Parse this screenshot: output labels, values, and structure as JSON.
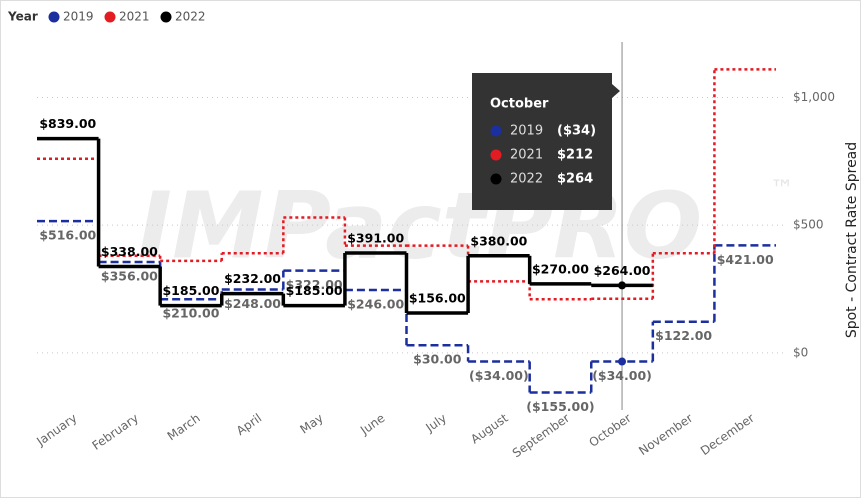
{
  "chart_data": {
    "type": "step-line",
    "legend_title": "Year",
    "watermark": "IMPactPRO",
    "watermark_mark": "™",
    "y_axis_title": "Spot - Contract Rate Spread",
    "categories": [
      "January",
      "February",
      "March",
      "April",
      "May",
      "June",
      "July",
      "August",
      "September",
      "October",
      "November",
      "December"
    ],
    "series": [
      {
        "name": "2019",
        "color": "#1c2f9e",
        "dash": true,
        "values": [
          516,
          356,
          210,
          248,
          322,
          246,
          30,
          -34,
          -155,
          -34,
          122,
          421
        ],
        "value_labels": [
          "$516.00",
          "$356.00",
          "$210.00",
          "$248.00",
          "$322.00",
          "$246.00",
          "$30.00",
          "($34.00)",
          "($155.00)",
          "($34.00)",
          "$122.00",
          "$421.00"
        ]
      },
      {
        "name": "2021",
        "color": "#e31b23",
        "dash": false,
        "dotted": true,
        "values": [
          760,
          380,
          360,
          390,
          530,
          420,
          420,
          280,
          210,
          212,
          390,
          1110
        ]
      },
      {
        "name": "2022",
        "color": "#000000",
        "dash": false,
        "values": [
          839,
          338,
          185,
          232,
          185,
          391,
          156,
          380,
          270,
          264,
          null,
          null
        ],
        "value_labels": [
          "$839.00",
          "$338.00",
          "$185.00",
          "$232.00",
          "$185.00",
          "$391.00",
          "$156.00",
          "$380.00",
          "$270.00",
          "$264.00",
          null,
          null
        ]
      }
    ],
    "ylim": [
      -165,
      1225
    ],
    "yticks": [
      {
        "value": 0,
        "label": "$0"
      },
      {
        "value": 500,
        "label": "$500"
      },
      {
        "value": 1000,
        "label": "$1,000"
      }
    ],
    "grid": true,
    "tooltip": {
      "title": "October",
      "rows": [
        [
          "2019",
          "($34)"
        ],
        [
          "2021",
          "$212"
        ],
        [
          "2022",
          "$264"
        ]
      ]
    }
  }
}
